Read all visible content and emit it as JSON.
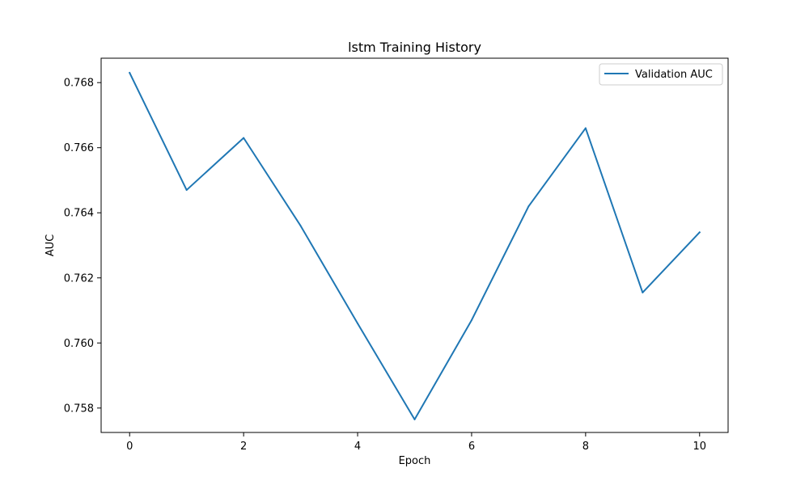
{
  "chart_data": {
    "type": "line",
    "title": "lstm Training History",
    "xlabel": "Epoch",
    "ylabel": "AUC",
    "x": [
      0,
      1,
      2,
      3,
      4,
      5,
      6,
      7,
      8,
      9,
      10
    ],
    "series": [
      {
        "name": "Validation AUC",
        "color": "#1f77b4",
        "values": [
          0.7683,
          0.7647,
          0.7663,
          0.7636,
          0.7606,
          0.75765,
          0.7607,
          0.7642,
          0.7666,
          0.76155,
          0.7634
        ]
      }
    ],
    "xlim": [
      -0.5,
      10.5
    ],
    "ylim": [
      0.75725,
      0.76875
    ],
    "xticks": [
      0,
      2,
      4,
      6,
      8,
      10
    ],
    "xtick_labels": [
      "0",
      "2",
      "4",
      "6",
      "8",
      "10"
    ],
    "yticks": [
      0.758,
      0.76,
      0.762,
      0.764,
      0.766,
      0.768
    ],
    "ytick_labels": [
      "0.758",
      "0.760",
      "0.762",
      "0.764",
      "0.766",
      "0.768"
    ],
    "grid": false,
    "legend_position": "top-right"
  }
}
